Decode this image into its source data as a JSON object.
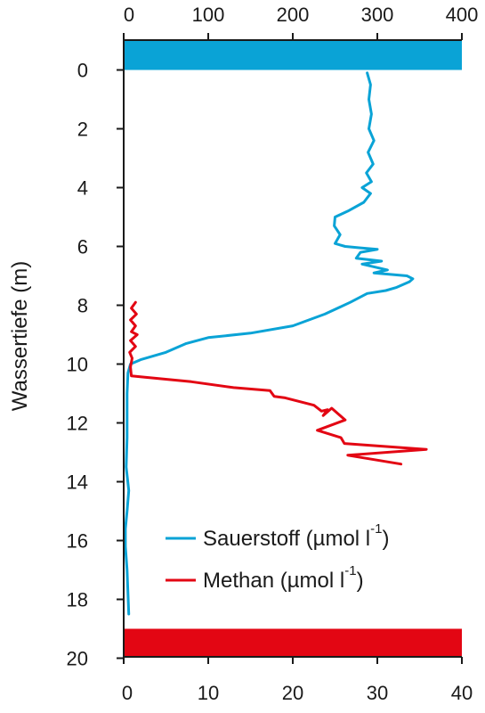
{
  "chart_data": {
    "type": "line",
    "ylabel": "Wassertiefe (m)",
    "y_axis": {
      "ticks": [
        0,
        2,
        4,
        6,
        8,
        10,
        12,
        14,
        16,
        18,
        20
      ],
      "range": [
        0,
        20
      ],
      "inverted": true
    },
    "x_axis_top": {
      "ticks": [
        0,
        100,
        200,
        300,
        400
      ],
      "range": [
        0,
        400
      ],
      "series": "Sauerstoff"
    },
    "x_axis_bottom": {
      "ticks": [
        0,
        10,
        20,
        30,
        40
      ],
      "range": [
        0,
        40
      ],
      "series": "Methan"
    },
    "grid": false,
    "legend_position": "bottom-right",
    "bands": [
      {
        "name": "surface",
        "depth_from": -1,
        "depth_to": 0,
        "color": "#0aa3d6"
      },
      {
        "name": "bottom",
        "depth_from": 19,
        "depth_to": 20,
        "color": "#e30613"
      }
    ],
    "series": [
      {
        "name": "Sauerstoff (µmol l⁻¹)",
        "legend_text": "Sauerstoff (µmol l",
        "legend_exp": "-1",
        "color": "#0aa3d6",
        "axis": "top",
        "points": [
          [
            288,
            0.1
          ],
          [
            292,
            0.5
          ],
          [
            290,
            1.0
          ],
          [
            293,
            1.5
          ],
          [
            290,
            2.0
          ],
          [
            296,
            2.4
          ],
          [
            289,
            2.8
          ],
          [
            295,
            3.2
          ],
          [
            287,
            3.5
          ],
          [
            293,
            3.8
          ],
          [
            282,
            4.0
          ],
          [
            292,
            4.2
          ],
          [
            284,
            4.5
          ],
          [
            265,
            4.8
          ],
          [
            250,
            5.0
          ],
          [
            249,
            5.3
          ],
          [
            256,
            5.6
          ],
          [
            250,
            5.9
          ],
          [
            262,
            6.0
          ],
          [
            280,
            6.05
          ],
          [
            300,
            6.1
          ],
          [
            280,
            6.2
          ],
          [
            275,
            6.4
          ],
          [
            305,
            6.5
          ],
          [
            282,
            6.6
          ],
          [
            312,
            6.8
          ],
          [
            296,
            6.9
          ],
          [
            335,
            7.0
          ],
          [
            342,
            7.1
          ],
          [
            338,
            7.2
          ],
          [
            322,
            7.4
          ],
          [
            310,
            7.5
          ],
          [
            288,
            7.6
          ],
          [
            268,
            7.9
          ],
          [
            238,
            8.3
          ],
          [
            200,
            8.7
          ],
          [
            150,
            8.95
          ],
          [
            100,
            9.1
          ],
          [
            74,
            9.3
          ],
          [
            50,
            9.6
          ],
          [
            20,
            9.85
          ],
          [
            8,
            10.0
          ],
          [
            5,
            10.3
          ],
          [
            4,
            11.0
          ],
          [
            4,
            12.5
          ],
          [
            3,
            13.5
          ],
          [
            6,
            14.3
          ],
          [
            4,
            15.0
          ],
          [
            2,
            15.6
          ],
          [
            2,
            16.2
          ],
          [
            4,
            17.0
          ],
          [
            5,
            17.8
          ],
          [
            6,
            18.5
          ]
        ]
      },
      {
        "name": "Methan (µmol l⁻¹)",
        "legend_text": "Methan (µmol l",
        "legend_exp": "-1",
        "color": "#e30613",
        "axis": "bottom",
        "points": [
          [
            1.4,
            7.9
          ],
          [
            0.9,
            8.1
          ],
          [
            1.5,
            8.3
          ],
          [
            0.8,
            8.5
          ],
          [
            1.4,
            8.7
          ],
          [
            0.9,
            8.9
          ],
          [
            1.6,
            9.0
          ],
          [
            0.8,
            9.2
          ],
          [
            1.4,
            9.4
          ],
          [
            0.7,
            9.6
          ],
          [
            1.0,
            9.8
          ],
          [
            0.8,
            10.1
          ],
          [
            0.9,
            10.4
          ],
          [
            2.5,
            10.45
          ],
          [
            8.0,
            10.6
          ],
          [
            13.0,
            10.8
          ],
          [
            17.3,
            10.9
          ],
          [
            17.8,
            11.1
          ],
          [
            19.1,
            11.15
          ],
          [
            22.5,
            11.4
          ],
          [
            23.4,
            11.6
          ],
          [
            24.1,
            11.55
          ],
          [
            23.6,
            11.75
          ],
          [
            24.6,
            11.5
          ],
          [
            26.2,
            11.9
          ],
          [
            22.9,
            12.25
          ],
          [
            25.7,
            12.5
          ],
          [
            26.1,
            12.7
          ],
          [
            35.8,
            12.9
          ],
          [
            26.5,
            13.1
          ],
          [
            32.8,
            13.4
          ]
        ]
      }
    ]
  }
}
